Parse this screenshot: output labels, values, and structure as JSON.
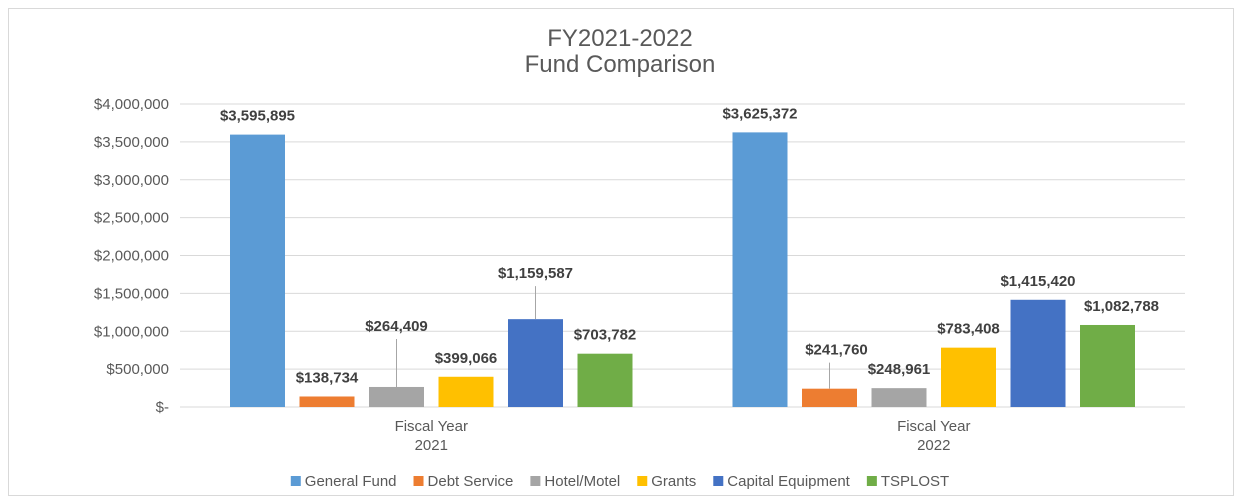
{
  "chart_data": {
    "type": "bar",
    "title": "FY2021-2022\nFund Comparison",
    "categories": [
      "Fiscal Year\n2021",
      "Fiscal Year\n2022"
    ],
    "series": [
      {
        "name": "General Fund",
        "color": "#5b9bd5",
        "values": [
          3595895,
          3625372
        ],
        "value_labels": [
          "$3,595,895",
          "$3,625,372"
        ]
      },
      {
        "name": "Debt Service",
        "color": "#ed7d31",
        "values": [
          138734,
          241760
        ],
        "value_labels": [
          "$138,734",
          "$241,760"
        ]
      },
      {
        "name": "Hotel/Motel",
        "color": "#a5a5a5",
        "values": [
          264409,
          248961
        ],
        "value_labels": [
          "$264,409",
          "$248,961"
        ]
      },
      {
        "name": "Grants",
        "color": "#ffc000",
        "values": [
          399066,
          783408
        ],
        "value_labels": [
          "$399,066",
          "$783,408"
        ]
      },
      {
        "name": "Capital Equipment",
        "color": "#4472c4",
        "values": [
          1159587,
          1415420
        ],
        "value_labels": [
          "$1,159,587",
          "$1,415,420"
        ]
      },
      {
        "name": "TSPLOST",
        "color": "#70ad47",
        "values": [
          703782,
          1082788
        ],
        "value_labels": [
          "$703,782",
          "$1,082,788"
        ]
      }
    ],
    "ylim": [
      0,
      4000000
    ],
    "yticks": [
      {
        "value": 0,
        "label": "$-"
      },
      {
        "value": 500000,
        "label": "$500,000"
      },
      {
        "value": 1000000,
        "label": "$1,000,000"
      },
      {
        "value": 1500000,
        "label": "$1,500,000"
      },
      {
        "value": 2000000,
        "label": "$2,000,000"
      },
      {
        "value": 2500000,
        "label": "$2,500,000"
      },
      {
        "value": 3000000,
        "label": "$3,000,000"
      },
      {
        "value": 3500000,
        "label": "$3,500,000"
      },
      {
        "value": 4000000,
        "label": "$4,000,000"
      }
    ],
    "grid": true,
    "legend": "bottom"
  }
}
